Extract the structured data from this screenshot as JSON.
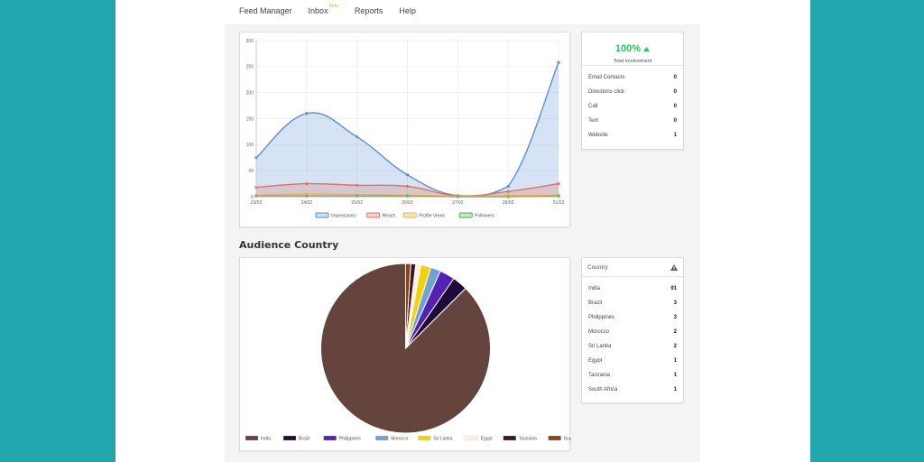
{
  "nav": {
    "items": [
      "Feed Manager",
      "Inbox",
      "Reports",
      "Help"
    ],
    "inbox_badge": "Beta"
  },
  "activity_chart": {
    "title_visible_fragment": "",
    "chart_data": {
      "type": "area",
      "x": [
        "23/02",
        "24/02",
        "25/02",
        "26/02",
        "27/02",
        "28/02",
        "01/03"
      ],
      "ylim": [
        0,
        300
      ],
      "yticks": [
        "0",
        "50",
        "100",
        "150",
        "200",
        "250",
        "300"
      ],
      "grid": true,
      "legend_position": "bottom",
      "series": [
        {
          "name": "Impressions",
          "values": [
            75,
            160,
            115,
            42,
            2,
            20,
            258
          ],
          "color": "#5b8fd6"
        },
        {
          "name": "Reach",
          "values": [
            18,
            25,
            22,
            20,
            2,
            10,
            25
          ],
          "color": "#e07060"
        },
        {
          "name": "Profile Views",
          "values": [
            3,
            5,
            4,
            3,
            1,
            2,
            3
          ],
          "color": "#f0b040"
        },
        {
          "name": "Followers",
          "values": [
            1,
            1,
            1,
            1,
            0,
            0,
            1
          ],
          "color": "#4caf50"
        }
      ]
    }
  },
  "involvement": {
    "percent": "100%",
    "label": "Total Involvement",
    "rows": [
      {
        "label": "Email Contacts",
        "value": "0"
      },
      {
        "label": "Directions click",
        "value": "0"
      },
      {
        "label": "Call",
        "value": "0"
      },
      {
        "label": "Text",
        "value": "0"
      },
      {
        "label": "Website",
        "value": "1"
      }
    ]
  },
  "audience": {
    "title": "Audience Country",
    "chart_data": {
      "type": "pie",
      "legend_position": "bottom",
      "categories": [
        "India",
        "Brazil",
        "Philippines",
        "Morocco",
        "Sri Lanka",
        "Egypt",
        "Tanzania",
        "South Africa"
      ],
      "values": [
        91,
        3,
        3,
        2,
        2,
        1,
        1,
        1
      ],
      "colors": [
        "#65443d",
        "#1e0b3c",
        "#5521b5",
        "#6fa3d6",
        "#f2d20f",
        "#faf0dc",
        "#3a1530",
        "#8b4513"
      ]
    }
  },
  "country_table": {
    "header": "Country",
    "rows": [
      {
        "label": "India",
        "value": "91"
      },
      {
        "label": "Brazil",
        "value": "3"
      },
      {
        "label": "Philippines",
        "value": "3"
      },
      {
        "label": "Morocco",
        "value": "2"
      },
      {
        "label": "Sri Lanka",
        "value": "2"
      },
      {
        "label": "Egypt",
        "value": "1"
      },
      {
        "label": "Tanzania",
        "value": "1"
      },
      {
        "label": "South Africa",
        "value": "1"
      }
    ]
  }
}
